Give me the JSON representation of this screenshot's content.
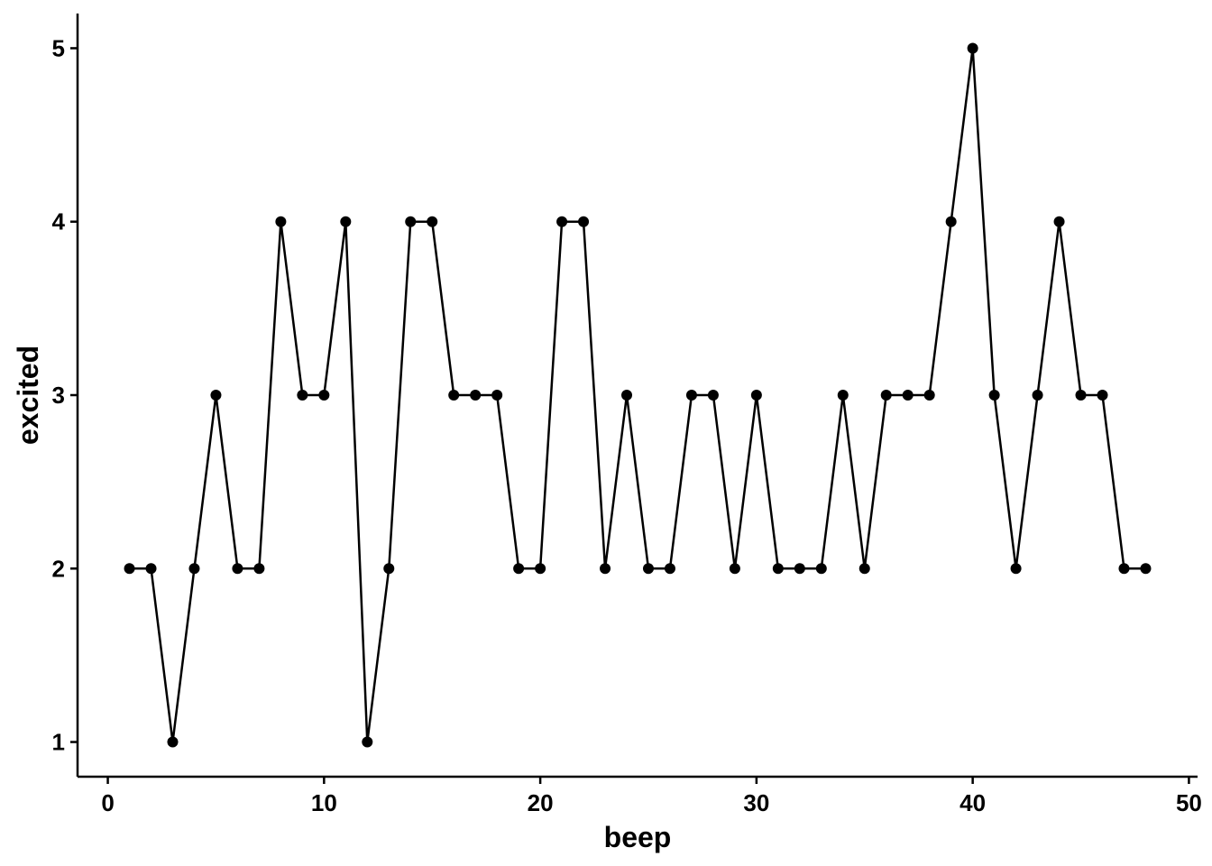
{
  "chart_data": {
    "type": "line",
    "xlabel": "beep",
    "ylabel": "excited",
    "xlim": [
      -1.4,
      50.4
    ],
    "ylim": [
      0.8,
      5.2
    ],
    "x_ticks": [
      0,
      10,
      20,
      30,
      40,
      50
    ],
    "y_ticks": [
      1,
      2,
      3,
      4,
      5
    ],
    "grid": false,
    "legend": "none",
    "line_color": "#000000",
    "markers": true,
    "series": [
      {
        "x": [
          1,
          2,
          3,
          4,
          5,
          6,
          7,
          8,
          9,
          10,
          11,
          12,
          13,
          14,
          15,
          16,
          17,
          18,
          19,
          20,
          21,
          22,
          23,
          24,
          25,
          26,
          27,
          28,
          29,
          30,
          31,
          32,
          33,
          34,
          35,
          36,
          37,
          38,
          39,
          40,
          41,
          42,
          43,
          44,
          45,
          46,
          47,
          48
        ],
        "values": [
          2,
          2,
          1,
          2,
          3,
          2,
          2,
          4,
          3,
          3,
          4,
          1,
          2,
          4,
          4,
          3,
          3,
          3,
          2,
          2,
          4,
          4,
          2,
          3,
          2,
          2,
          3,
          3,
          2,
          3,
          2,
          2,
          2,
          3,
          2,
          3,
          3,
          3,
          4,
          5,
          3,
          2,
          3,
          4,
          3,
          3,
          2,
          2
        ]
      }
    ]
  }
}
